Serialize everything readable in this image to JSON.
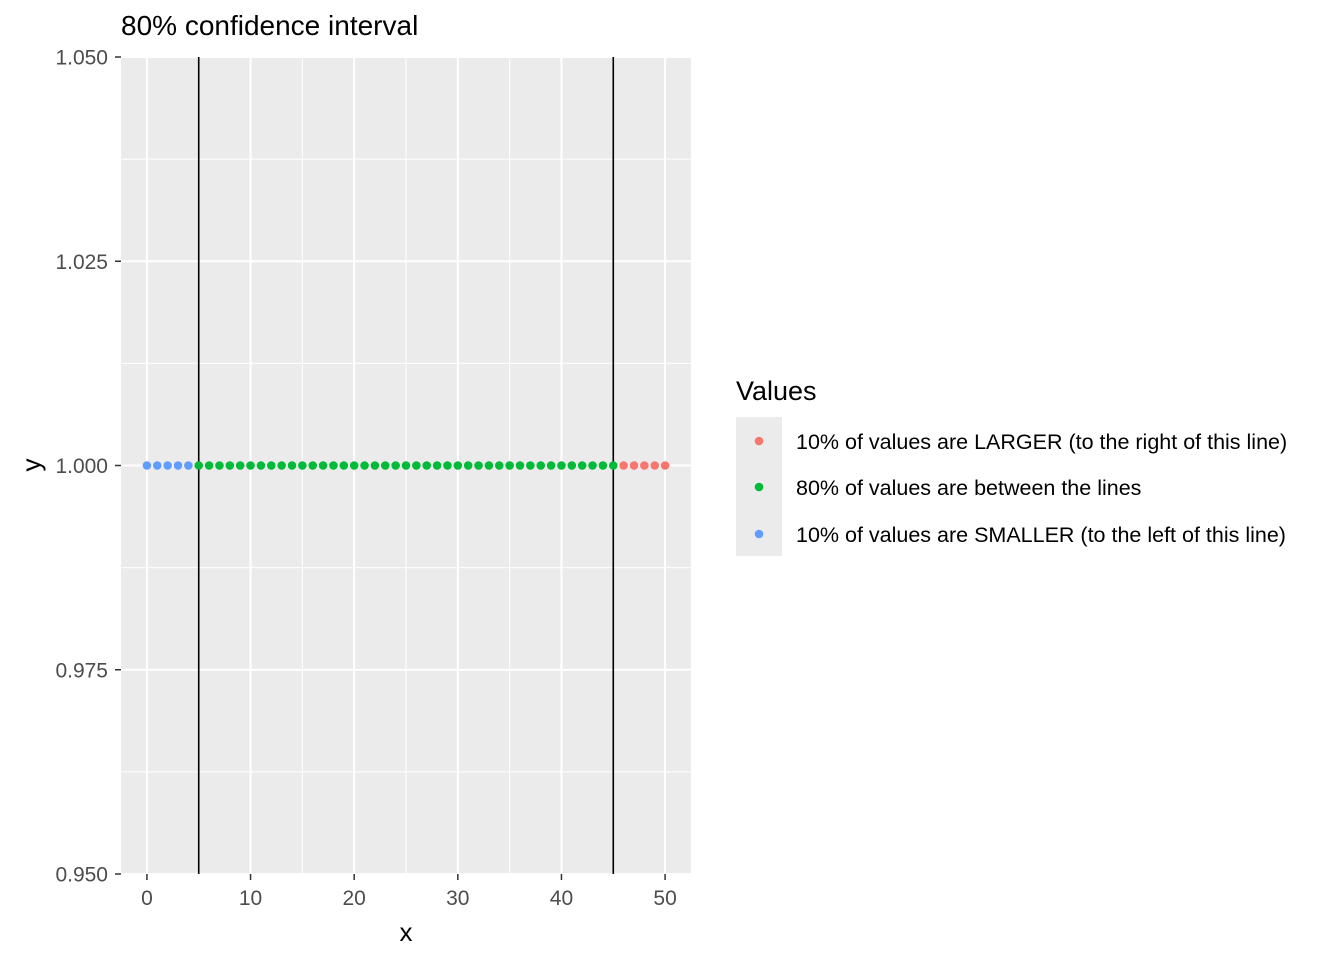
{
  "chart_data": {
    "type": "scatter",
    "title": "80% confidence interval",
    "xlabel": "x",
    "ylabel": "y",
    "xlim": [
      -2.5,
      52.5
    ],
    "ylim": [
      0.95,
      1.05
    ],
    "x_ticks": [
      0,
      10,
      20,
      30,
      40,
      50
    ],
    "x_tick_labels": [
      "0",
      "10",
      "20",
      "30",
      "40",
      "50"
    ],
    "y_ticks": [
      0.95,
      0.975,
      1.0,
      1.025,
      1.05
    ],
    "y_tick_labels": [
      "0.950",
      "0.975",
      "1.000",
      "1.025",
      "1.050"
    ],
    "grid": true,
    "background": "#ebebeb",
    "vlines": [
      5,
      45
    ],
    "legend": {
      "title": "Values",
      "position": "right",
      "entries": [
        {
          "label": "10% of values are LARGER (to the right of this line)",
          "color": "#f8766d"
        },
        {
          "label": "80% of values are between the lines",
          "color": "#00ba38"
        },
        {
          "label": "10% of values are SMALLER (to the left of this line)",
          "color": "#619cff"
        }
      ]
    },
    "series": [
      {
        "name": "10% of values are SMALLER (to the left of this line)",
        "color": "#619cff",
        "x": [
          0,
          1,
          2,
          3,
          4
        ],
        "y": [
          1,
          1,
          1,
          1,
          1
        ]
      },
      {
        "name": "80% of values are between the lines",
        "color": "#00ba38",
        "x": [
          5,
          6,
          7,
          8,
          9,
          10,
          11,
          12,
          13,
          14,
          15,
          16,
          17,
          18,
          19,
          20,
          21,
          22,
          23,
          24,
          25,
          26,
          27,
          28,
          29,
          30,
          31,
          32,
          33,
          34,
          35,
          36,
          37,
          38,
          39,
          40,
          41,
          42,
          43,
          44,
          45
        ],
        "y": [
          1,
          1,
          1,
          1,
          1,
          1,
          1,
          1,
          1,
          1,
          1,
          1,
          1,
          1,
          1,
          1,
          1,
          1,
          1,
          1,
          1,
          1,
          1,
          1,
          1,
          1,
          1,
          1,
          1,
          1,
          1,
          1,
          1,
          1,
          1,
          1,
          1,
          1,
          1,
          1,
          1
        ]
      },
      {
        "name": "10% of values are LARGER (to the right of this line)",
        "color": "#f8766d",
        "x": [
          46,
          47,
          48,
          49,
          50
        ],
        "y": [
          1,
          1,
          1,
          1,
          1
        ]
      }
    ]
  }
}
